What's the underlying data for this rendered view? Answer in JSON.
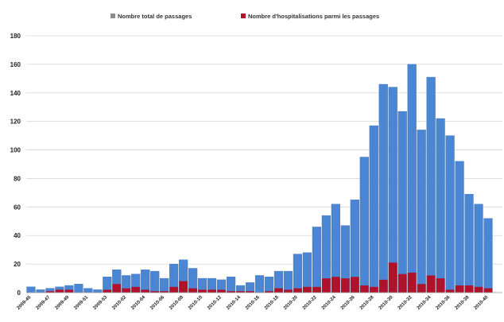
{
  "colors": {
    "total": "#4a86d4",
    "total_edge": "#3a72bd",
    "hospitalisations": "#b0112b",
    "grid": "#d6d6d6",
    "legend_total_marker": "#8c8c8c"
  },
  "legend": {
    "total_label": "Nombre total de passages",
    "hosp_label": "Nombre d'hospitalisations parmi les passages"
  },
  "chart_data": {
    "type": "bar",
    "layout": "overlapping",
    "legend_position": "top",
    "grid": true,
    "ylim": [
      0,
      180
    ],
    "yticks": [
      "0",
      "20",
      "40",
      "60",
      "80",
      "100",
      "120",
      "140",
      "160",
      "180"
    ],
    "categories": [
      "2009-45",
      "2009-46",
      "2009-47",
      "2009-48",
      "2009-49",
      "2009-50",
      "2009-51",
      "2009-52",
      "2009-53",
      "2010-01",
      "2010-02",
      "2010-03",
      "2010-04",
      "2010-05",
      "2010-06",
      "2010-07",
      "2010-08",
      "2010-09",
      "2010-10",
      "2010-11",
      "2010-12",
      "2010-13",
      "2010-14",
      "2010-15",
      "2010-16",
      "2010-17",
      "2010-18",
      "2010-19",
      "2010-20",
      "2010-21",
      "2010-22",
      "2010-23",
      "2010-24",
      "2010-25",
      "2010-26",
      "2010-27",
      "2010-28",
      "2010-29",
      "2010-30",
      "2010-31",
      "2010-32",
      "2010-33",
      "2010-34",
      "2010-35",
      "2010-36",
      "2010-37",
      "2010-38",
      "2010-39",
      "2010-40",
      "2010-41"
    ],
    "x_tick_labels": [
      "2009-45",
      "2009-47",
      "2009-49",
      "2009-51",
      "2009-53",
      "2010-02",
      "2010-04",
      "2010-06",
      "2010-08",
      "2010-10",
      "2010-12",
      "2010-14",
      "2010-16",
      "2010-18",
      "2010-20",
      "2010-22",
      "2010-24",
      "2010-26",
      "2010-28",
      "2010-30",
      "2010-32",
      "2010-34",
      "2010-36",
      "2010-38",
      "2010-40"
    ],
    "series": [
      {
        "name": "Nombre total de passages",
        "values": [
          4,
          2,
          3,
          4,
          5,
          6,
          3,
          2,
          11,
          16,
          12,
          13,
          16,
          15,
          10,
          20,
          23,
          17,
          10,
          10,
          9,
          11,
          5,
          7,
          12,
          11,
          15,
          15,
          27,
          28,
          46,
          54,
          62,
          47,
          65,
          95,
          117,
          146,
          144,
          127,
          160,
          114,
          151,
          122,
          110,
          92,
          69,
          62,
          52,
          0
        ]
      },
      {
        "name": "Nombre d'hospitalisations parmi les passages",
        "values": [
          0,
          0,
          1,
          2,
          2,
          0,
          0,
          0,
          2,
          6,
          3,
          4,
          2,
          1,
          1,
          4,
          8,
          3,
          2,
          2,
          2,
          1,
          1,
          1,
          0,
          1,
          3,
          2,
          3,
          4,
          4,
          10,
          11,
          10,
          11,
          5,
          4,
          9,
          21,
          13,
          14,
          6,
          12,
          10,
          2,
          5,
          5,
          4,
          3,
          0
        ]
      }
    ]
  }
}
